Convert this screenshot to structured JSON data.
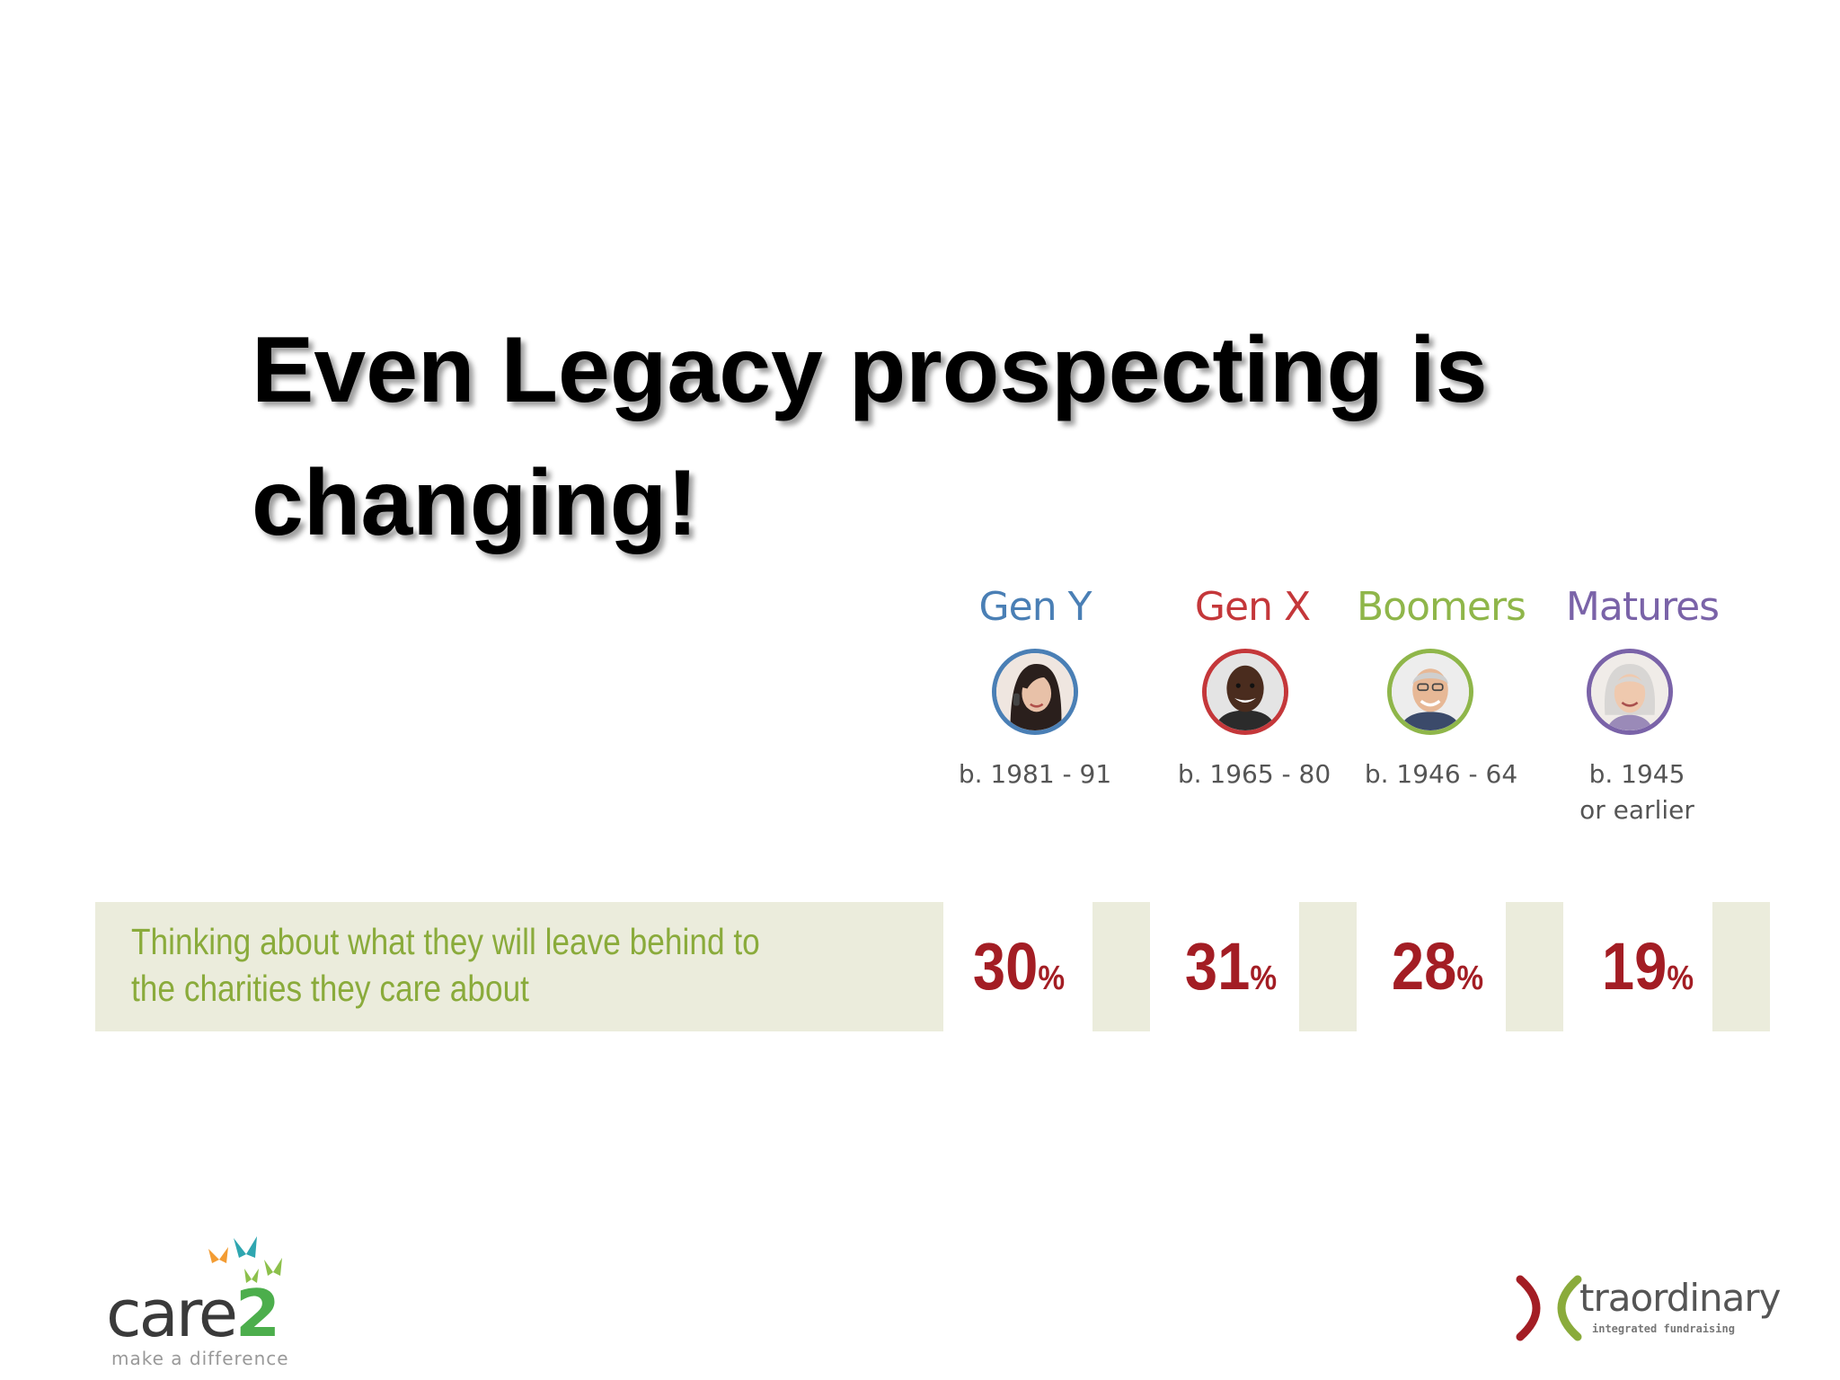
{
  "slide": {
    "title": "Even Legacy prospecting is changing!"
  },
  "generations": [
    {
      "label": "Gen Y",
      "birth_line1": "b. 1981 - 91",
      "birth_line2": "",
      "percent": "30",
      "color": "#4a7fb5"
    },
    {
      "label": "Gen X",
      "birth_line1": "b. 1965 - 80",
      "birth_line2": "",
      "percent": "31",
      "color": "#c4373a"
    },
    {
      "label": "Boomers",
      "birth_line1": "b. 1946 - 64",
      "birth_line2": "",
      "percent": "28",
      "color": "#8fb64a"
    },
    {
      "label": "Matures",
      "birth_line1": "b. 1945",
      "birth_line2": "or earlier",
      "percent": "19",
      "color": "#7a63a8"
    }
  ],
  "percent_sign": "%",
  "stat_row": {
    "line1": "Thinking about what they will leave behind to",
    "line2": "the charities they care about"
  },
  "logos": {
    "care2_word": "care",
    "care2_num": "2",
    "care2_tagline": "make a difference",
    "xtra_word": "traordinary",
    "xtra_tagline": "integrated fundraising"
  }
}
